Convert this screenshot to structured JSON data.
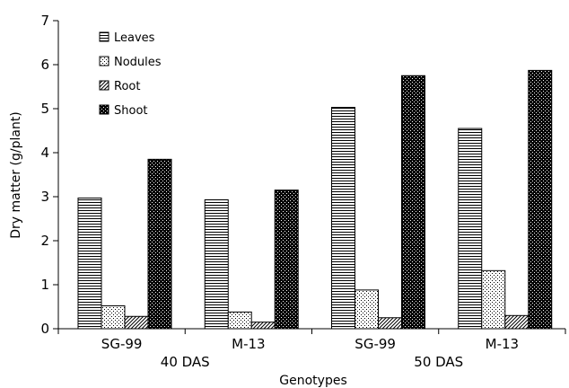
{
  "chart_data": {
    "type": "bar",
    "xlabel": "Genotypes",
    "ylabel": "Dry matter (g/plant)",
    "ylim": [
      0,
      7
    ],
    "yticks": [
      "0",
      "1",
      "2",
      "3",
      "4",
      "5",
      "6",
      "7"
    ],
    "legend_position": "top-left",
    "grid": false,
    "categories": [
      "SG-99",
      "M-13",
      "SG-99",
      "M-13"
    ],
    "groups": [
      {
        "label": "40 DAS",
        "categories": [
          "SG-99",
          "M-13"
        ]
      },
      {
        "label": "50 DAS",
        "categories": [
          "SG-99",
          "M-13"
        ]
      }
    ],
    "series": [
      {
        "name": "Leaves",
        "pattern": "horizontal-lines",
        "values": [
          2.97,
          2.93,
          5.03,
          4.55
        ]
      },
      {
        "name": "Nodules",
        "pattern": "dots",
        "values": [
          0.52,
          0.38,
          0.88,
          1.32
        ]
      },
      {
        "name": "Root",
        "pattern": "diagonal-hatch",
        "values": [
          0.28,
          0.15,
          0.25,
          0.3
        ]
      },
      {
        "name": "Shoot",
        "pattern": "dense-checker",
        "values": [
          3.85,
          3.15,
          5.75,
          5.87
        ]
      }
    ]
  }
}
